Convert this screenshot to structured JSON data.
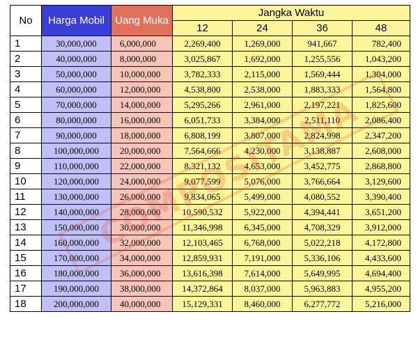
{
  "headers": {
    "no": "No",
    "price": "Harga Mobil",
    "down_payment": "Uang Muka",
    "term": "Jangka Waktu",
    "months": [
      "12",
      "24",
      "36",
      "48"
    ]
  },
  "rows": [
    [
      "1",
      "30,000,000",
      "6,000,000",
      "2,269,400",
      "1,269,000",
      "941,667",
      "782,400"
    ],
    [
      "2",
      "40,000,000",
      "8,000,000",
      "3,025,867",
      "1,692,000",
      "1,255,556",
      "1,043,200"
    ],
    [
      "3",
      "50,000,000",
      "10,000,000",
      "3,782,333",
      "2,115,000",
      "1,569,444",
      "1,304,000"
    ],
    [
      "4",
      "60,000,000",
      "12,000,000",
      "4,538,800",
      "2,538,000",
      "1,883,333",
      "1,564,800"
    ],
    [
      "5",
      "70,000,000",
      "14,000,000",
      "5,295,266",
      "2,961,000",
      "2,197,221",
      "1,825,600"
    ],
    [
      "6",
      "80,000,000",
      "16,000,000",
      "6,051,733",
      "3,384,000",
      "2,511,110",
      "2,086,400"
    ],
    [
      "7",
      "90,000,000",
      "18,000,000",
      "6,808,199",
      "3,807,000",
      "2,824,998",
      "2,347,200"
    ],
    [
      "8",
      "100,000,000",
      "20,000,000",
      "7,564,666",
      "4,230,000",
      "3,138,887",
      "2,608,000"
    ],
    [
      "9",
      "110,000,000",
      "22,000,000",
      "8,321,132",
      "4,653,000",
      "3,452,775",
      "2,868,800"
    ],
    [
      "10",
      "120,000,000",
      "24,000,000",
      "9,077,599",
      "5,076,000",
      "3,766,664",
      "3,129,600"
    ],
    [
      "11",
      "130,000,000",
      "26,000,000",
      "9,834,065",
      "5,499,000",
      "4,080,552",
      "3,390,400"
    ],
    [
      "12",
      "140,000,000",
      "28,000,000",
      "10,590,532",
      "5,922,000",
      "4,394,441",
      "3,651,200"
    ],
    [
      "13",
      "150,000,000",
      "30,000,000",
      "11,346,998",
      "6,345,000",
      "4,708,329",
      "3,912,000"
    ],
    [
      "14",
      "160,000,000",
      "32,000,000",
      "12,103,465",
      "6,768,000",
      "5,022,218",
      "4,172,800"
    ],
    [
      "15",
      "170,000,000",
      "34,000,000",
      "12,859,931",
      "7,191,000",
      "5,336,106",
      "4,433,600"
    ],
    [
      "16",
      "180,000,000",
      "36,000,000",
      "13,616,398",
      "7,614,000",
      "5,649,995",
      "4,694,400"
    ],
    [
      "17",
      "190,000,000",
      "38,000,000",
      "14,372,864",
      "8,037,000",
      "5,963,883",
      "4,955,200"
    ],
    [
      "18",
      "200,000,000",
      "40,000,000",
      "15,129,331",
      "8,460,000",
      "6,277,772",
      "5,216,000"
    ]
  ],
  "watermark": "COMPOSITAMA",
  "colors": {
    "price_header": "#3a3fd8",
    "price_cells": "#c0c0f7",
    "dp_header": "#e0715b",
    "dp_cells": "#f7c4b8",
    "term_cells": "#fdf59a"
  }
}
